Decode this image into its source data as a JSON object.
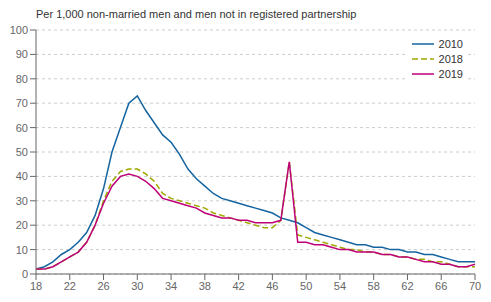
{
  "chart_data": {
    "type": "line",
    "ylabel": "Per 1,000 non-married men and men not in registered partnership",
    "x": [
      18,
      19,
      20,
      21,
      22,
      23,
      24,
      25,
      26,
      27,
      28,
      29,
      30,
      31,
      32,
      33,
      34,
      35,
      36,
      37,
      38,
      39,
      40,
      41,
      42,
      43,
      44,
      45,
      46,
      47,
      48,
      49,
      50,
      51,
      52,
      53,
      54,
      55,
      56,
      57,
      58,
      59,
      60,
      61,
      62,
      63,
      64,
      65,
      66,
      67,
      68,
      69,
      70
    ],
    "series": [
      {
        "name": "2010",
        "color": "#1464a0",
        "line_style": "solid",
        "values": [
          2,
          3,
          5,
          8,
          10,
          13,
          17,
          24,
          35,
          50,
          60,
          70,
          73,
          67,
          62,
          57,
          54,
          49,
          43,
          39,
          36,
          33,
          31,
          30,
          29,
          28,
          27,
          26,
          25,
          23,
          22,
          21,
          19,
          17,
          16,
          15,
          14,
          13,
          12,
          12,
          11,
          11,
          10,
          10,
          9,
          9,
          8,
          8,
          7,
          6,
          5,
          5,
          5
        ]
      },
      {
        "name": "2018",
        "color": "#a0a800",
        "line_style": "dashed",
        "values": [
          2,
          2,
          3,
          5,
          7,
          9,
          13,
          20,
          30,
          38,
          42,
          43,
          43,
          41,
          38,
          33,
          31,
          30,
          29,
          28,
          27,
          25,
          24,
          23,
          22,
          21,
          20,
          19,
          19,
          22,
          46,
          16,
          15,
          14,
          13,
          12,
          11,
          10,
          10,
          9,
          9,
          8,
          8,
          7,
          7,
          6,
          6,
          5,
          5,
          4,
          3,
          3,
          3
        ]
      },
      {
        "name": "2019",
        "color": "#be0078",
        "line_style": "solid",
        "values": [
          2,
          2,
          3,
          5,
          7,
          9,
          13,
          20,
          29,
          36,
          40,
          41,
          40,
          38,
          35,
          31,
          30,
          29,
          28,
          27,
          25,
          24,
          23,
          23,
          22,
          22,
          21,
          21,
          21,
          22,
          46,
          13,
          13,
          12,
          12,
          11,
          10,
          10,
          9,
          9,
          9,
          8,
          8,
          7,
          7,
          6,
          5,
          5,
          4,
          4,
          3,
          3,
          4
        ]
      }
    ],
    "xlim": [
      18,
      70
    ],
    "ylim": [
      0,
      100
    ],
    "xticks": [
      18,
      22,
      26,
      30,
      34,
      38,
      42,
      46,
      50,
      54,
      58,
      62,
      66,
      70
    ],
    "yticks": [
      0,
      10,
      20,
      30,
      40,
      50,
      60,
      70,
      80,
      90,
      100
    ],
    "grid": true,
    "legend": "upper right"
  }
}
